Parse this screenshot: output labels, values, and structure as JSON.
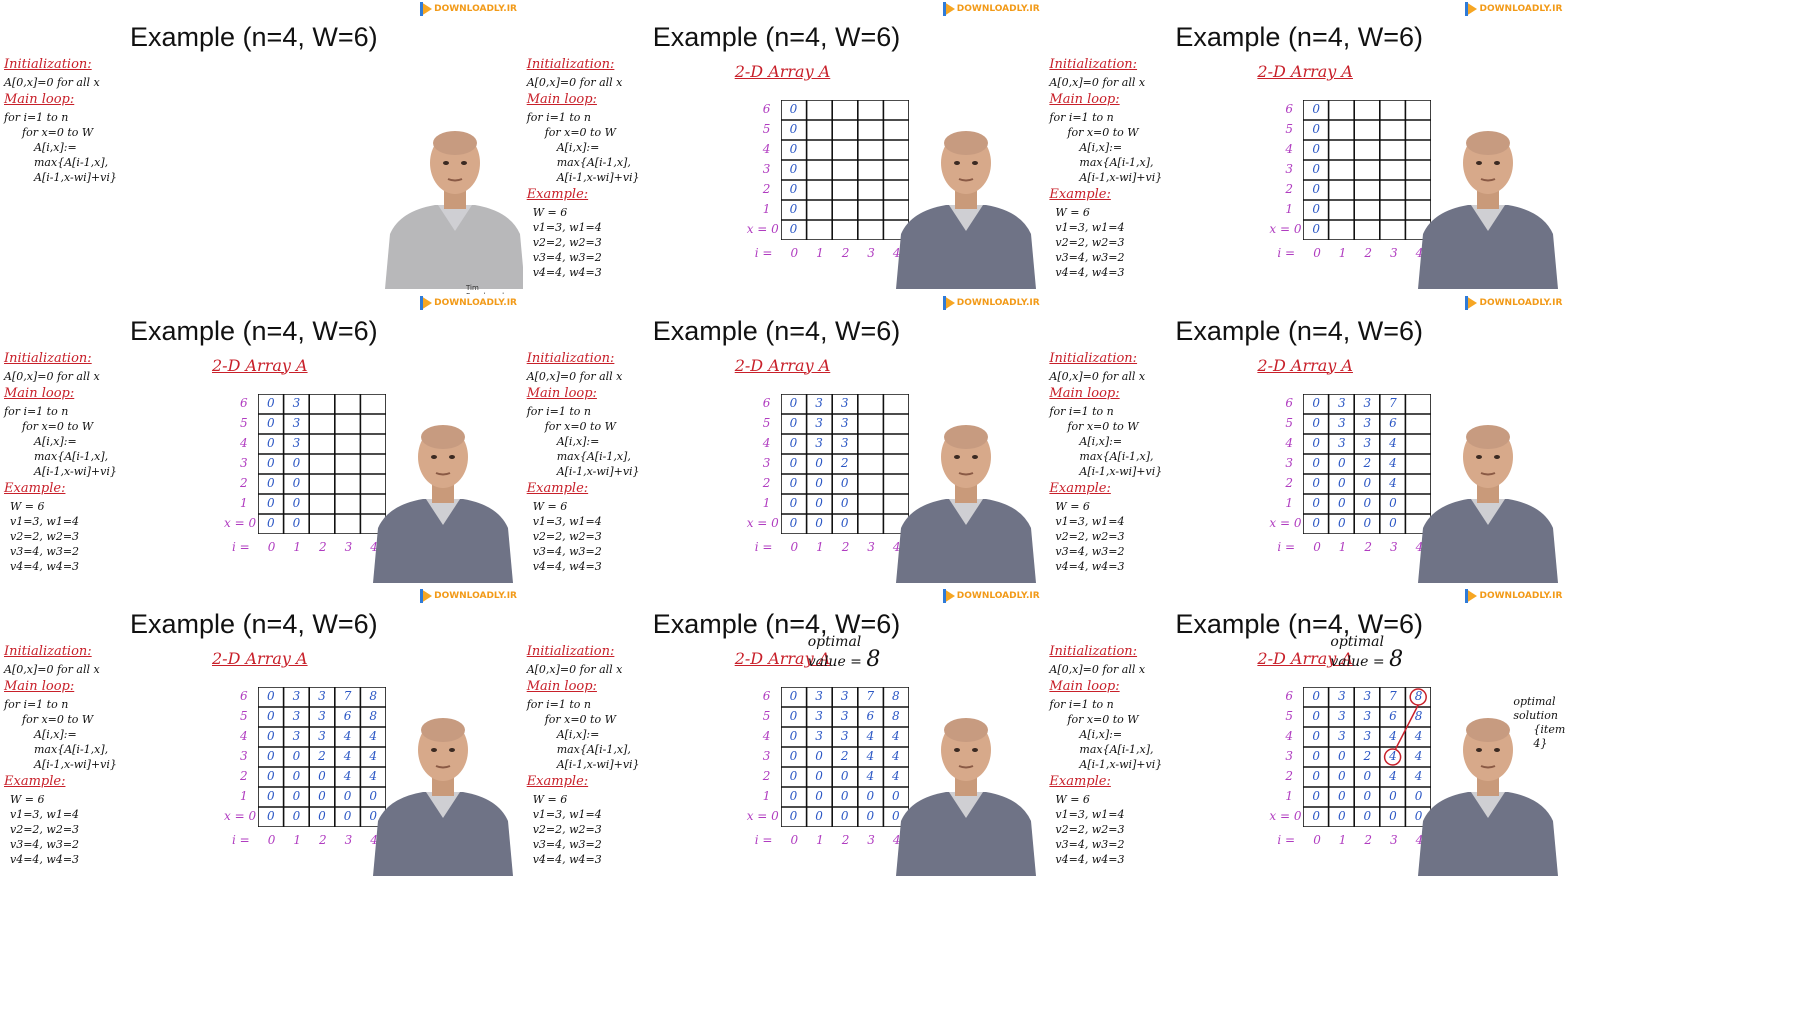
{
  "panels": [
    {
      "title": "Example (n=4, W=6)",
      "logo": "DOWNLOADLY.IR",
      "show_array": false,
      "show_example": false,
      "filled": [],
      "optimal": false,
      "caption": "Tim Roughgarden"
    },
    {
      "title": "Example (n=4, W=6)",
      "logo": "DOWNLOADLY.IR",
      "show_array": true,
      "show_example": true,
      "filled": [
        0
      ],
      "optimal": false
    },
    {
      "title": "Example (n=4, W=6)",
      "logo": "DOWNLOADLY.IR",
      "show_array": true,
      "show_example": true,
      "filled": [
        0
      ],
      "optimal": false
    },
    {
      "title": "Example (n=4, W=6)",
      "logo": "DOWNLOADLY.IR",
      "show_array": true,
      "show_example": true,
      "filled": [
        0,
        1
      ],
      "optimal": false
    },
    {
      "title": "Example (n=4, W=6)",
      "logo": "DOWNLOADLY.IR",
      "show_array": true,
      "show_example": true,
      "filled": [
        0,
        1,
        2
      ],
      "optimal": false
    },
    {
      "title": "Example (n=4, W=6)",
      "logo": "DOWNLOADLY.IR",
      "show_array": true,
      "show_example": true,
      "filled": [
        0,
        1,
        2,
        3
      ],
      "optimal": false
    },
    {
      "title": "Example (n=4, W=6)",
      "logo": "DOWNLOADLY.IR",
      "show_array": true,
      "show_example": true,
      "filled": [
        0,
        1,
        2,
        3,
        4
      ],
      "optimal": false
    },
    {
      "title": "Example (n=4, W=6)",
      "logo": "DOWNLOADLY.IR",
      "show_array": true,
      "show_example": true,
      "filled": [
        0,
        1,
        2,
        3,
        4,
        5
      ],
      "optimal": true
    },
    {
      "title": "Example (n=4, W=6)",
      "logo": "DOWNLOADLY.IR",
      "show_array": true,
      "show_example": true,
      "filled": [
        0,
        1,
        2,
        3,
        4,
        5
      ],
      "optimal": true,
      "traceback": true
    }
  ],
  "notes": {
    "init_heading": "Initialization:",
    "init_line": "A[0,x]=0 for all x",
    "loop_heading": "Main loop:",
    "loop_lines": [
      "for i=1 to n",
      "for x=0 to W",
      "A[i,x]:=",
      "max{A[i-1,x],",
      "A[i-1,x-wi]+vi}"
    ],
    "example_heading": "Example:",
    "example_lines": [
      "W = 6",
      "v1=3, w1=4",
      "v2=2, w2=3",
      "v3=4, w3=2",
      "v4=4, w4=3"
    ]
  },
  "array": {
    "heading": "2-D Array A",
    "y_labels": [
      "6",
      "5",
      "4",
      "3",
      "2",
      "1",
      "x = 0"
    ],
    "x_labels": [
      "i =",
      "0",
      "1",
      "2",
      "3",
      "4"
    ],
    "columns": [
      [
        "0",
        "0",
        "0",
        "0",
        "0",
        "0",
        "0"
      ],
      [
        "3",
        "3",
        "3",
        "0",
        "0",
        "0",
        "0"
      ],
      [
        "3",
        "3",
        "3",
        "2",
        "0",
        "0",
        "0"
      ],
      [
        "7",
        "6",
        "4",
        "4",
        "4",
        "0",
        "0"
      ],
      [
        "8",
        "8",
        "4",
        "4",
        "4",
        "0",
        "0"
      ]
    ]
  },
  "optimal": {
    "line1": "optimal",
    "line2": "value =",
    "value": "8"
  },
  "traceback_note": {
    "line1": "optimal",
    "line2": "solution",
    "line3": "{item",
    "line4": "4}"
  }
}
